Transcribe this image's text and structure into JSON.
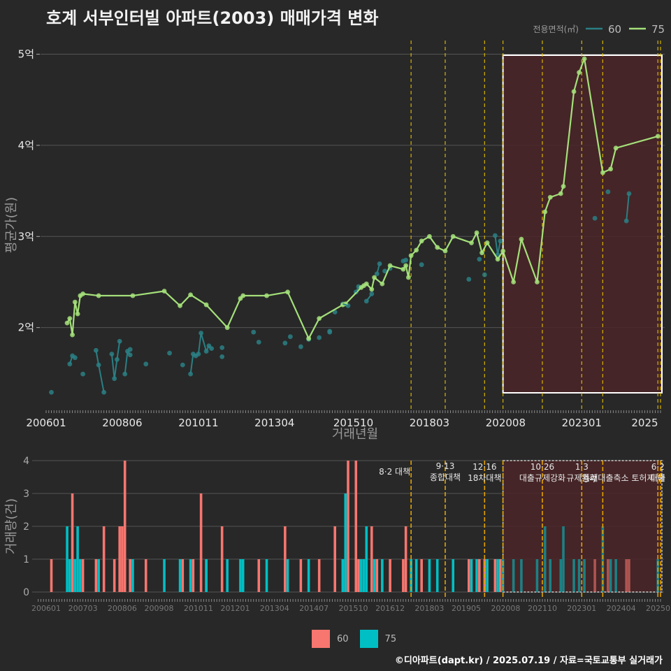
{
  "title": "호계 서부인터빌 아파트(2003) 매매가격 변화",
  "footer": "©디아파트(dapt.kr) / 2025.07.19 / 자료=국토교통부 실거래가",
  "colors": {
    "background": "#282828",
    "grid": "#555555",
    "line_60": "#2a7f84",
    "line_75": "#a4e07a",
    "bar_60": "#f7766f",
    "bar_75": "#00bfc4",
    "policy_line": "#e5c100",
    "highlight_fill": "#4a2427",
    "highlight_border": "#ffffff"
  },
  "chart_data": [
    {
      "type": "line",
      "title": "호계 서부인터빌 아파트(2003) 매매가격 변화",
      "xlabel": "거래년월",
      "ylabel": "평균가(원)",
      "x_ticks": [
        "200601",
        "200806",
        "201011",
        "201304",
        "201510",
        "201803",
        "202008",
        "202301",
        "2025"
      ],
      "y_ticks": [
        "2억",
        "3억",
        "4억",
        "5억"
      ],
      "ylim": [
        1.1,
        5.15
      ],
      "legend_title": "전용면적(㎡)",
      "legend_position": "top-right",
      "series": [
        {
          "name": "60",
          "color": "#2a7f84",
          "points": [
            [
              "2006.03",
              1.29
            ],
            [
              "2006.10",
              1.6
            ],
            [
              "2006.11",
              1.69
            ],
            [
              "2006.12",
              1.67
            ],
            [
              "2007.03",
              1.49
            ],
            [
              "2007.08",
              1.75
            ],
            [
              "2007.09",
              1.59
            ],
            [
              "2007.11",
              1.29
            ],
            [
              "2008.02",
              1.71
            ],
            [
              "2008.03",
              1.44
            ],
            [
              "2008.04",
              1.65
            ],
            [
              "2008.05",
              1.85
            ],
            [
              "2008.07",
              1.49
            ],
            [
              "2008.08",
              1.74
            ],
            [
              "2008.09",
              1.7
            ],
            [
              "2008.09",
              1.76
            ],
            [
              "2009.03",
              1.6
            ],
            [
              "2009.12",
              1.72
            ],
            [
              "2010.05",
              1.59
            ],
            [
              "2010.08",
              1.49
            ],
            [
              "2010.09",
              1.71
            ],
            [
              "2010.10",
              1.69
            ],
            [
              "2010.11",
              1.71
            ],
            [
              "2010.12",
              1.94
            ],
            [
              "2011.02",
              1.74
            ],
            [
              "2011.03",
              1.8
            ],
            [
              "2011.04",
              1.77
            ],
            [
              "2011.08",
              1.78
            ],
            [
              "2011.08",
              1.68
            ],
            [
              "2012.08",
              1.95
            ],
            [
              "2012.10",
              1.84
            ],
            [
              "2013.08",
              1.83
            ],
            [
              "2013.10",
              1.9
            ],
            [
              "2014.02",
              1.79
            ],
            [
              "2014.05",
              1.87
            ],
            [
              "2014.09",
              1.89
            ],
            [
              "2015.01",
              1.95
            ],
            [
              "2015.01",
              1.96
            ],
            [
              "2015.03",
              2.17
            ],
            [
              "2015.06",
              2.26
            ],
            [
              "2015.08",
              2.24
            ],
            [
              "2015.11",
              2.39
            ],
            [
              "2015.12",
              2.45
            ],
            [
              "2016.03",
              2.29
            ],
            [
              "2016.05",
              2.37
            ],
            [
              "2016.07",
              2.59
            ],
            [
              "2016.08",
              2.7
            ],
            [
              "2016.10",
              2.62
            ],
            [
              "2016.12",
              2.65
            ],
            [
              "2017.05",
              2.73
            ],
            [
              "2017.06",
              2.74
            ],
            [
              "2017.12",
              2.69
            ],
            [
              "2019.06",
              2.53
            ],
            [
              "2019.10",
              2.75
            ],
            [
              "2019.12",
              2.58
            ],
            [
              "2020.04",
              3.01
            ],
            [
              "2020.05",
              2.8
            ],
            [
              "2020.06",
              2.95
            ],
            [
              "2023.06",
              3.2
            ],
            [
              "2023.11",
              3.49
            ],
            [
              "2024.06",
              3.17
            ],
            [
              "2024.07",
              3.47
            ]
          ]
        },
        {
          "name": "75",
          "color": "#a4e07a",
          "points": [
            [
              "2006.09",
              2.05
            ],
            [
              "2006.10",
              2.1
            ],
            [
              "2006.11",
              1.92
            ],
            [
              "2006.12",
              2.28
            ],
            [
              "2007.01",
              2.15
            ],
            [
              "2007.02",
              2.35
            ],
            [
              "2007.03",
              2.37
            ],
            [
              "2007.09",
              2.35
            ],
            [
              "2008.10",
              2.35
            ],
            [
              "2009.10",
              2.4
            ],
            [
              "2010.04",
              2.24
            ],
            [
              "2010.08",
              2.36
            ],
            [
              "2011.02",
              2.25
            ],
            [
              "2011.10",
              2.0
            ],
            [
              "2012.03",
              2.32
            ],
            [
              "2012.04",
              2.35
            ],
            [
              "2013.01",
              2.35
            ],
            [
              "2013.09",
              2.39
            ],
            [
              "2014.05",
              1.88
            ],
            [
              "2014.09",
              2.1
            ],
            [
              "2015.06",
              2.25
            ],
            [
              "2015.07",
              2.26
            ],
            [
              "2016.01",
              2.44
            ],
            [
              "2016.02",
              2.46
            ],
            [
              "2016.03",
              2.48
            ],
            [
              "2016.05",
              2.42
            ],
            [
              "2016.06",
              2.55
            ],
            [
              "2016.09",
              2.48
            ],
            [
              "2016.12",
              2.68
            ],
            [
              "2017.05",
              2.64
            ],
            [
              "2017.06",
              2.68
            ],
            [
              "2017.07",
              2.55
            ],
            [
              "2017.08",
              2.79
            ],
            [
              "2017.10",
              2.85
            ],
            [
              "2017.12",
              2.95
            ],
            [
              "2018.03",
              3.0
            ],
            [
              "2018.06",
              2.88
            ],
            [
              "2018.09",
              2.84
            ],
            [
              "2018.12",
              3.0
            ],
            [
              "2019.07",
              2.93
            ],
            [
              "2019.09",
              3.04
            ],
            [
              "2019.11",
              2.82
            ],
            [
              "2020.01",
              2.93
            ],
            [
              "2020.05",
              2.75
            ],
            [
              "2020.07",
              2.84
            ],
            [
              "2020.11",
              2.5
            ],
            [
              "2021.02",
              2.97
            ],
            [
              "2021.08",
              2.5
            ],
            [
              "2021.11",
              3.27
            ],
            [
              "2022.01",
              3.43
            ],
            [
              "2022.05",
              3.47
            ],
            [
              "2022.06",
              3.55
            ],
            [
              "2022.10",
              4.59
            ],
            [
              "2022.12",
              4.8
            ],
            [
              "2023.02",
              4.95
            ],
            [
              "2023.09",
              3.7
            ],
            [
              "2023.12",
              3.74
            ],
            [
              "2024.02",
              3.97
            ],
            [
              "2025.06",
              4.1
            ]
          ]
        }
      ],
      "policy_dates": [
        "2017.08",
        "2018.09",
        "2019.12",
        "2020.07",
        "2021.10",
        "2023.01",
        "2023.09",
        "2025.06",
        "2025.07"
      ],
      "highlight_range": [
        "2020.07",
        "2025.07"
      ]
    },
    {
      "type": "bar",
      "ylabel": "거래량(건)",
      "x_ticks": [
        "200601",
        "200703",
        "200806",
        "200908",
        "201011",
        "201201",
        "201304",
        "201407",
        "201510",
        "201612",
        "201803",
        "201905",
        "202008",
        "202110",
        "202301",
        "202404",
        "202507"
      ],
      "y_ticks": [
        "0",
        "1",
        "2",
        "3",
        "4"
      ],
      "ylim": [
        0,
        4
      ],
      "legend_position": "bottom",
      "series": [
        {
          "name": "60",
          "color": "#f7766f",
          "bars": [
            [
              "2006.03",
              1
            ],
            [
              "2006.11",
              3
            ],
            [
              "2007.03",
              1
            ],
            [
              "2007.08",
              1
            ],
            [
              "2007.11",
              2
            ],
            [
              "2008.03",
              1
            ],
            [
              "2008.05",
              2
            ],
            [
              "2008.06",
              2
            ],
            [
              "2008.07",
              4
            ],
            [
              "2008.09",
              1
            ],
            [
              "2009.03",
              1
            ],
            [
              "2010.05",
              1
            ],
            [
              "2010.09",
              1
            ],
            [
              "2010.12",
              3
            ],
            [
              "2011.02",
              1
            ],
            [
              "2011.08",
              2
            ],
            [
              "2012.10",
              1
            ],
            [
              "2013.08",
              2
            ],
            [
              "2014.02",
              1
            ],
            [
              "2014.09",
              1
            ],
            [
              "2015.03",
              2
            ],
            [
              "2015.06",
              1
            ],
            [
              "2015.08",
              4
            ],
            [
              "2015.11",
              4
            ],
            [
              "2015.12",
              1
            ],
            [
              "2016.05",
              2
            ],
            [
              "2016.07",
              1
            ],
            [
              "2016.12",
              1
            ],
            [
              "2017.05",
              1
            ],
            [
              "2017.06",
              2
            ],
            [
              "2017.12",
              1
            ],
            [
              "2019.06",
              1
            ],
            [
              "2019.10",
              1
            ],
            [
              "2019.12",
              1
            ],
            [
              "2020.04",
              1
            ],
            [
              "2020.06",
              1
            ],
            [
              "2023.06",
              1
            ],
            [
              "2023.11",
              1
            ],
            [
              "2024.06",
              1
            ],
            [
              "2024.07",
              1
            ]
          ]
        },
        {
          "name": "75",
          "color": "#00bfc4",
          "bars": [
            [
              "2006.09",
              2
            ],
            [
              "2006.10",
              1
            ],
            [
              "2006.12",
              1
            ],
            [
              "2007.01",
              2
            ],
            [
              "2007.02",
              1
            ],
            [
              "2007.09",
              1
            ],
            [
              "2008.10",
              1
            ],
            [
              "2009.10",
              1
            ],
            [
              "2010.04",
              1
            ],
            [
              "2010.08",
              1
            ],
            [
              "2011.02",
              1
            ],
            [
              "2011.10",
              1
            ],
            [
              "2012.03",
              1
            ],
            [
              "2012.04",
              1
            ],
            [
              "2013.01",
              1
            ],
            [
              "2013.09",
              1
            ],
            [
              "2014.05",
              1
            ],
            [
              "2015.06",
              1
            ],
            [
              "2015.07",
              3
            ],
            [
              "2016.01",
              1
            ],
            [
              "2016.02",
              1
            ],
            [
              "2016.03",
              2
            ],
            [
              "2016.06",
              1
            ],
            [
              "2016.09",
              1
            ],
            [
              "2017.08",
              1
            ],
            [
              "2017.10",
              1
            ],
            [
              "2018.03",
              1
            ],
            [
              "2018.06",
              1
            ],
            [
              "2018.12",
              1
            ],
            [
              "2019.07",
              1
            ],
            [
              "2019.09",
              1
            ],
            [
              "2020.01",
              1
            ],
            [
              "2020.05",
              1
            ],
            [
              "2020.07",
              1
            ],
            [
              "2020.11",
              1
            ],
            [
              "2021.02",
              1
            ],
            [
              "2021.08",
              1
            ],
            [
              "2021.11",
              2
            ],
            [
              "2022.01",
              1
            ],
            [
              "2022.05",
              1
            ],
            [
              "2022.06",
              2
            ],
            [
              "2022.10",
              1
            ],
            [
              "2022.12",
              1
            ],
            [
              "2023.02",
              1
            ],
            [
              "2023.09",
              2
            ],
            [
              "2023.12",
              1
            ],
            [
              "2024.02",
              1
            ],
            [
              "2025.06",
              1
            ]
          ]
        }
      ],
      "policies": [
        {
          "date": "2017.08",
          "lines": [
            "8·2 대책"
          ]
        },
        {
          "date": "2018.09",
          "lines": [
            "9·13",
            "종합대책"
          ]
        },
        {
          "date": "2019.12",
          "lines": [
            "12·16",
            "18차대책"
          ]
        },
        {
          "date": "2020.07",
          "lines": []
        },
        {
          "date": "2021.10",
          "lines": [
            "10·26",
            "대출규제강화"
          ]
        },
        {
          "date": "2023.01",
          "lines": [
            "1·3",
            "규제완화"
          ]
        },
        {
          "date": "2023.09",
          "lines": [
            "9·7",
            "특례대출축소 토허제 해"
          ]
        },
        {
          "date": "2025.06",
          "lines": [
            "6·2",
            "대출"
          ]
        },
        {
          "date": "2025.07",
          "lines": []
        }
      ],
      "highlight_range": [
        "2020.07",
        "2025.07"
      ]
    }
  ]
}
